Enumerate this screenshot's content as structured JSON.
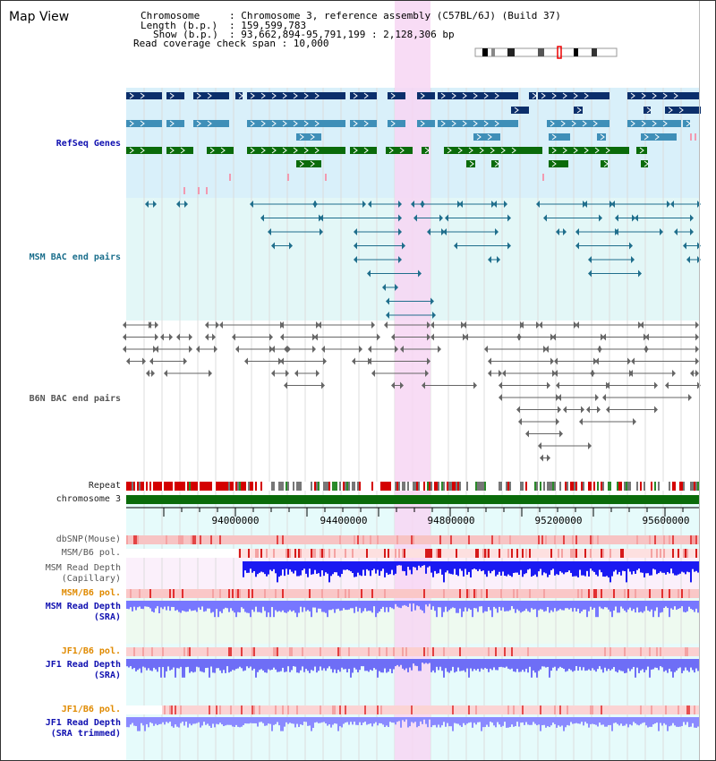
{
  "page": {
    "title": "Map View"
  },
  "info": {
    "chromosome_key": "Chromosome",
    "chromosome_val": ": Chromosome 3, reference assembly (C57BL/6J) (Build 37)",
    "length_key": "Length (b.p.)",
    "length_val": ": 159,599,783",
    "show_key": "Show (b.p.)",
    "show_val": ": 93,662,894-95,791,199 : 2,128,306 bp",
    "coverage": "Read coverage check span : 10,000"
  },
  "tracks": {
    "refseq": "RefSeq Genes",
    "msm_bac": "MSM BAC end pairs",
    "b6n_bac": "B6N BAC end pairs",
    "repeat": "Repeat",
    "chromosome": "chromosome 3",
    "dbsnp": "dbSNP(Mouse)",
    "msm_b6_pol": "MSM/B6 pol.",
    "msm_depth_cap_1": "MSM Read Depth",
    "msm_depth_cap_2": "(Capillary)",
    "msm_b6_pol_2": "MSM/B6 pol.",
    "msm_depth_sra_1": "MSM Read Depth",
    "msm_depth_sra_2": "(SRA)",
    "jf1_b6_pol": "JF1/B6 pol.",
    "jf1_depth_1": "JF1 Read Depth",
    "jf1_depth_2": "(SRA)",
    "jf1_b6_pol_2": "JF1/B6 pol.",
    "jf1_depth_tr_1": "JF1 Read Depth",
    "jf1_depth_tr_2": "(SRA trimmed)"
  },
  "axis": {
    "ticks": [
      "94000000",
      "94400000",
      "94800000",
      "95200000",
      "95600000"
    ]
  },
  "colors": {
    "gene_dark": "#0b2f6b",
    "gene_mid": "#3f8fb8",
    "gene_green": "#0a6b0a",
    "msm_bac": "#1f6e8c",
    "b6n_bac": "#666666",
    "highlight": "#f7d6f3",
    "label_blue": "#1010b0",
    "label_orange": "#e08a00",
    "depth_blue": "#2a2aff"
  }
}
